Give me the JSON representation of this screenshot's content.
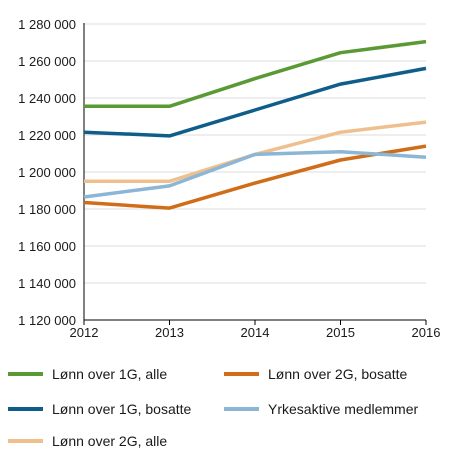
{
  "chart_data": {
    "type": "line",
    "x": [
      2012,
      2013,
      2014,
      2015,
      2016
    ],
    "x_tick_labels": [
      "2012",
      "2013",
      "2014",
      "2015",
      "2016"
    ],
    "ylim": [
      1120000,
      1280000
    ],
    "y_ticks": [
      1120000,
      1140000,
      1160000,
      1180000,
      1200000,
      1220000,
      1240000,
      1260000,
      1280000
    ],
    "y_tick_labels": [
      "1 120 000",
      "1 140 000",
      "1 160 000",
      "1 180 000",
      "1 200 000",
      "1 220 000",
      "1 240 000",
      "1 260 000",
      "1 280 000"
    ],
    "grid": "horizontal",
    "legend_position": "bottom",
    "series": [
      {
        "name": "Lønn over 1G, alle",
        "color": "#5a9a35",
        "values": [
          1235500,
          1235500,
          1250500,
          1264500,
          1270500
        ]
      },
      {
        "name": "Lønn over 1G, bosatte",
        "color": "#0f5e8a",
        "values": [
          1221500,
          1219500,
          1233500,
          1247500,
          1256000
        ]
      },
      {
        "name": "Lønn over 2G, alle",
        "color": "#efc08e",
        "values": [
          1195000,
          1195000,
          1209500,
          1221500,
          1227000
        ]
      },
      {
        "name": "Lønn over 2G, bosatte",
        "color": "#d16c18",
        "values": [
          1183500,
          1180500,
          1194000,
          1206500,
          1214000
        ]
      },
      {
        "name": "Yrkesaktive medlemmer",
        "color": "#8cb6d5",
        "values": [
          1186500,
          1192500,
          1209500,
          1211000,
          1208000
        ]
      }
    ],
    "legend_order": [
      0,
      3,
      1,
      4,
      2
    ]
  }
}
